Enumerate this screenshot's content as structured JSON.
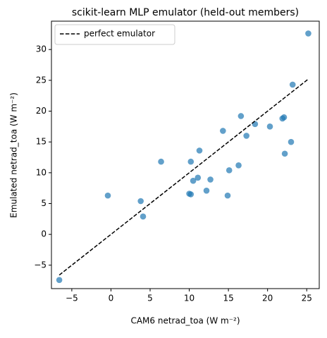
{
  "chart_data": {
    "type": "scatter",
    "title": "scikit-learn MLP emulator (held-out members)",
    "xlabel": "CAM6 netrad_toa (W m⁻²)",
    "ylabel": "Emulated netrad_toa (W m⁻²)",
    "xlim": [
      -7.6,
      26.6
    ],
    "ylim": [
      -8.8,
      34.6
    ],
    "xticks": [
      {
        "value": -5,
        "label": "−5"
      },
      0,
      5,
      10,
      15,
      20,
      25
    ],
    "yticks": [
      {
        "value": -5,
        "label": "−5"
      },
      0,
      5,
      10,
      15,
      20,
      25,
      30
    ],
    "legend": "upper left",
    "series": [
      {
        "color": "#1f77b4",
        "x": [
          -6.6,
          -0.4,
          3.8,
          4.1,
          6.4,
          10.2,
          10.0,
          10.2,
          10.5,
          11.1,
          11.3,
          12.2,
          12.7,
          14.3,
          14.9,
          15.1,
          16.3,
          16.6,
          17.3,
          18.4,
          20.3,
          21.9,
          22.1,
          22.2,
          23.0,
          23.2,
          25.2
        ],
        "values": [
          -7.4,
          6.3,
          5.4,
          2.9,
          11.8,
          11.8,
          6.6,
          6.5,
          8.7,
          9.2,
          13.6,
          7.1,
          8.9,
          16.8,
          6.3,
          10.4,
          11.2,
          19.2,
          16.0,
          17.9,
          17.5,
          18.8,
          19.0,
          13.1,
          15.0,
          24.3,
          32.6
        ]
      },
      {
        "name": "perfect emulator",
        "type": "line",
        "dash": true,
        "color": "#000000",
        "x": [
          -6.6,
          25.2
        ],
        "values": [
          -6.6,
          25.2
        ]
      }
    ]
  }
}
